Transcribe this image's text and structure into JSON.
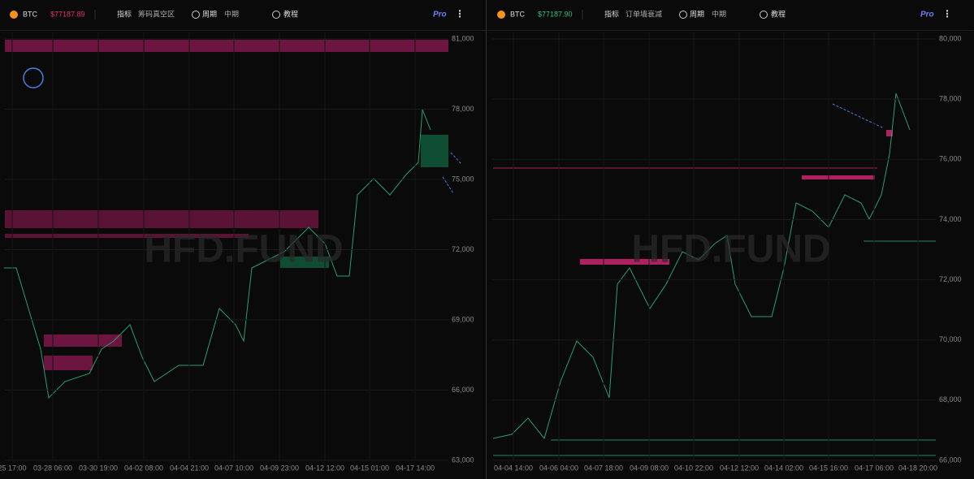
{
  "panels": [
    {
      "symbol": "BTC",
      "price": "$77187.89",
      "indicator_label": "指标",
      "indicator": "筹码真空区",
      "period_label": "周期",
      "period": "中期",
      "tutorial": "教程",
      "pro": "Pro",
      "watermark": "HFD.FUND",
      "yticks": [
        "81,000",
        "78,000",
        "75,000",
        "72,000",
        "69,000",
        "66,000",
        "63,000"
      ],
      "xticks": [
        "25 17:00",
        "03-28 06:00",
        "03-30 19:00",
        "04-02 08:00",
        "04-04 21:00",
        "04-07 10:00",
        "04-09 23:00",
        "04-12 12:00",
        "04-15 01:00",
        "04-17 14:00"
      ]
    },
    {
      "symbol": "BTC",
      "price": "$77187.90",
      "indicator_label": "指标",
      "indicator": "订单墙衰减",
      "period_label": "周期",
      "period": "中期",
      "tutorial": "教程",
      "pro": "Pro",
      "watermark": "HFD.FUND",
      "yticks": [
        "80,000",
        "78,000",
        "76,000",
        "74,000",
        "72,000",
        "70,000",
        "68,000",
        "66,000"
      ],
      "xticks": [
        "04-04 14:00",
        "04-06 04:00",
        "04-07 18:00",
        "04-09 08:00",
        "04-10 22:00",
        "04-12 12:00",
        "04-14 02:00",
        "04-15 16:00",
        "04-17 06:00",
        "04-18 20:00"
      ]
    }
  ]
}
